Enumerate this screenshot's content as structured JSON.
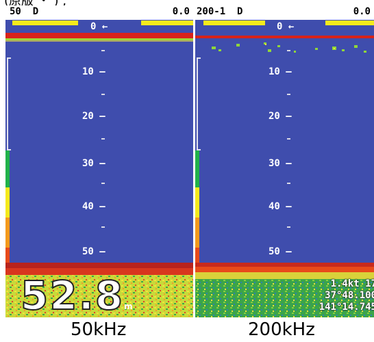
{
  "top_strip": {
    "text": "(原版 ・ ) ,"
  },
  "panels": [
    {
      "id": "left",
      "header_left": "50  D",
      "header_right": "0.0",
      "scale": {
        "zero_label": "0",
        "arrow": "←",
        "labels": [
          "10",
          "20",
          "30",
          "40",
          "50"
        ]
      },
      "depth_reading": {
        "value": "52.8",
        "unit": "m"
      },
      "caption": "50kHz",
      "colors": {
        "water": "#3f4dad",
        "surface": "#d8221a",
        "bar": "#f6ea1c"
      }
    },
    {
      "id": "right",
      "header_left": "200-1  D",
      "header_right": "0.0",
      "scale": {
        "zero_label": "0",
        "arrow": "←",
        "labels": [
          "10",
          "20",
          "30",
          "40",
          "50"
        ]
      },
      "info": {
        "speed": "1.4kt  17",
        "lat": "37°48.100",
        "lon": "141°14.745"
      },
      "caption": "200kHz"
    }
  ]
}
